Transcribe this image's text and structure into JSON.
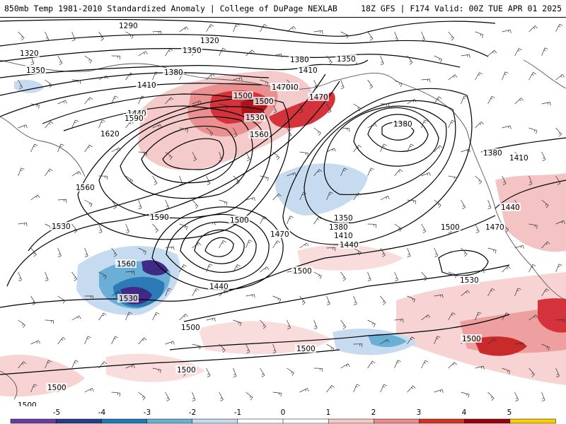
{
  "title": {
    "left": "850mb Temp 1981-2010 Standardized Anomaly | College of DuPage NEXLAB",
    "right": "18Z GFS | F174 Valid: 00Z TUE APR 01 2025"
  },
  "map": {
    "contour_labels": [
      "1290",
      "1320",
      "1320",
      "1350",
      "1350",
      "1380",
      "1380",
      "1410",
      "1410",
      "1440",
      "1440",
      "1470",
      "1470",
      "1500",
      "1500",
      "1530",
      "1560",
      "1590",
      "1620",
      "1560",
      "1380",
      "1350",
      "1380",
      "1410",
      "1440",
      "1350",
      "1380",
      "1410",
      "1440",
      "1500",
      "1470",
      "1470",
      "1500",
      "1590",
      "1530",
      "1560",
      "1440",
      "1530",
      "1500",
      "1530",
      "1500",
      "1500",
      "1500",
      "1500",
      "1500",
      "1500"
    ],
    "colors": {
      "land": "#cfcfcf",
      "contour": "#000000",
      "warm_1": "#f7d3d3",
      "warm_2": "#ee9f9f",
      "warm_3": "#d9333c",
      "warm_4": "#a50f15",
      "cold_1": "#c6dbef",
      "cold_2": "#6baed6",
      "cold_3": "#2c7bb6",
      "cold_4": "#3f2a88"
    }
  },
  "legend": {
    "labels": [
      "-5",
      "-4",
      "-3",
      "-2",
      "-1",
      "0",
      "1",
      "2",
      "3",
      "4",
      "5"
    ],
    "colors": [
      "#6a3d9a",
      "#283c86",
      "#1f78b4",
      "#6baed6",
      "#c6dbef",
      "#ffffff",
      "#ffffff",
      "#f7c9c9",
      "#ee8a8a",
      "#d7301f",
      "#99000d",
      "#ffcc00"
    ]
  }
}
